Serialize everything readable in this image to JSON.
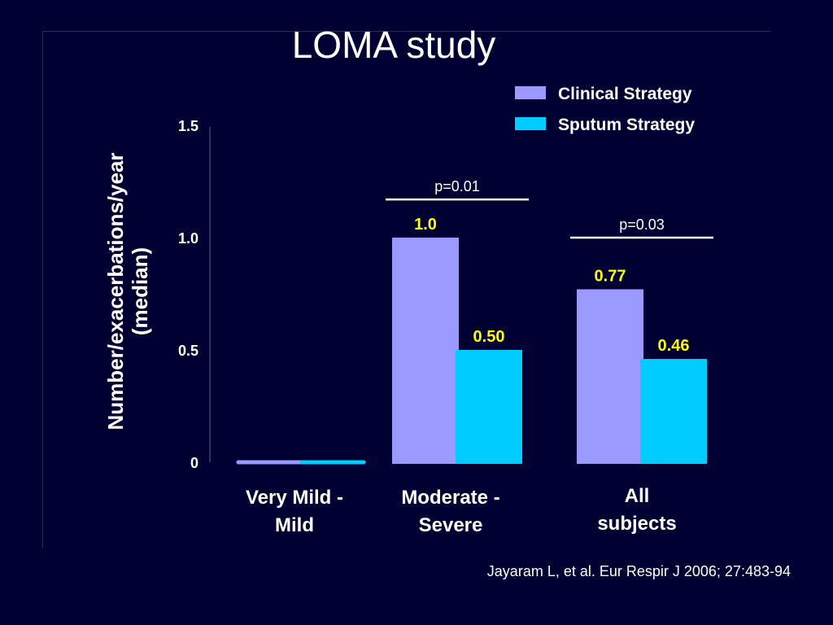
{
  "slide": {
    "title": "LOMA study",
    "citation": "Jayaram L, et al. Eur Respir J 2006; 27:483-94"
  },
  "chart_data": {
    "type": "bar",
    "title": "LOMA study",
    "ylabel_lines": [
      "Number/exacerbations/year",
      "(median)"
    ],
    "ylim": [
      0,
      1.5
    ],
    "yticks": [
      0,
      0.5,
      1.0,
      1.5
    ],
    "ytick_labels": [
      "0",
      "0.5",
      "1.0",
      "1.5"
    ],
    "categories": [
      [
        "Very Mild -",
        "Mild"
      ],
      [
        "Moderate -",
        "Severe"
      ],
      [
        "All",
        "subjects"
      ]
    ],
    "series": [
      {
        "name": "Clinical Strategy",
        "color": "#9999ff",
        "values": [
          0,
          1.0,
          0.77
        ],
        "labels": [
          "",
          "1.0",
          "0.77"
        ]
      },
      {
        "name": "Sputum Strategy",
        "color": "#00ccff",
        "values": [
          0,
          0.5,
          0.46
        ],
        "labels": [
          "",
          "0.50",
          "0.46"
        ]
      }
    ],
    "annotations": [
      {
        "category_index": 1,
        "text": "p=0.01",
        "level": 1.17
      },
      {
        "category_index": 2,
        "text": "p=0.03",
        "level": 1.0
      }
    ],
    "value_label_color": "#ffff00",
    "text_color": "#ffffff",
    "legend_position": "top-right",
    "grid": false
  }
}
